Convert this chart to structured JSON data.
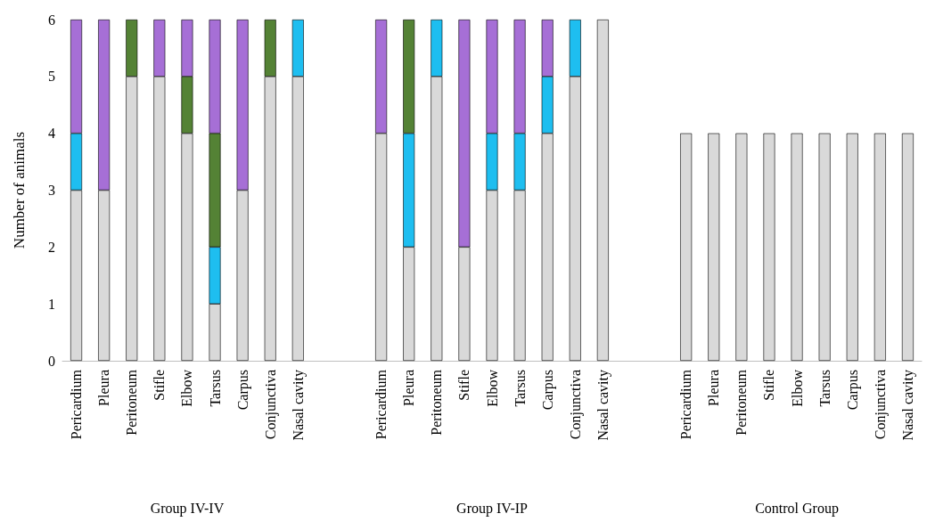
{
  "chart_data": {
    "type": "bar",
    "stacked": true,
    "ylabel": "Number of animals",
    "categories": [
      "Pericardium",
      "Pleura",
      "Peritoneum",
      "Stifle",
      "Elbow",
      "Tarsus",
      "Carpus",
      "Conjunctiva",
      "Nasal cavity",
      null,
      null,
      "Pericardium",
      "Pleura",
      "Peritoneum",
      "Stifle",
      "Elbow",
      "Tarsus",
      "Carpus",
      "Conjunctiva",
      "Nasal cavity",
      null,
      null,
      "Pericardium",
      "Pleura",
      "Peritoneum",
      "Stifle",
      "Elbow",
      "Tarsus",
      "Carpus",
      "Conjunctiva",
      "Nasal cavity"
    ],
    "series": [
      {
        "color": "#d9d9d9",
        "values": [
          3,
          3,
          5,
          5,
          4,
          1,
          3,
          5,
          5,
          null,
          null,
          4,
          2,
          5,
          2,
          3,
          3,
          4,
          5,
          6,
          null,
          null,
          4,
          4,
          4,
          4,
          4,
          4,
          4,
          4,
          4
        ]
      },
      {
        "color": "#1ebef0",
        "values": [
          1,
          null,
          null,
          null,
          null,
          1,
          null,
          null,
          1,
          null,
          null,
          null,
          2,
          1,
          null,
          1,
          1,
          1,
          1,
          null,
          null,
          null,
          null,
          null,
          null,
          null,
          null,
          null,
          null,
          null,
          null
        ]
      },
      {
        "color": "#548235",
        "values": [
          null,
          null,
          1,
          null,
          1,
          2,
          null,
          1,
          null,
          null,
          null,
          null,
          2,
          null,
          null,
          null,
          null,
          null,
          null,
          null,
          null,
          null,
          null,
          null,
          null,
          null,
          null,
          null,
          null,
          null,
          null
        ]
      },
      {
        "color": "#a66fd6",
        "values": [
          2,
          3,
          null,
          1,
          1,
          2,
          3,
          null,
          null,
          null,
          null,
          2,
          null,
          null,
          4,
          2,
          2,
          1,
          null,
          null,
          null,
          null,
          null,
          null,
          null,
          null,
          null,
          null,
          null,
          null,
          null
        ]
      }
    ],
    "ylim": [
      0,
      6
    ],
    "yticks": [
      0,
      1,
      2,
      3,
      4,
      5,
      6
    ],
    "grid": false,
    "annotations": [
      "Group IV-IV",
      "Group IV-IP",
      "Control Group"
    ]
  }
}
